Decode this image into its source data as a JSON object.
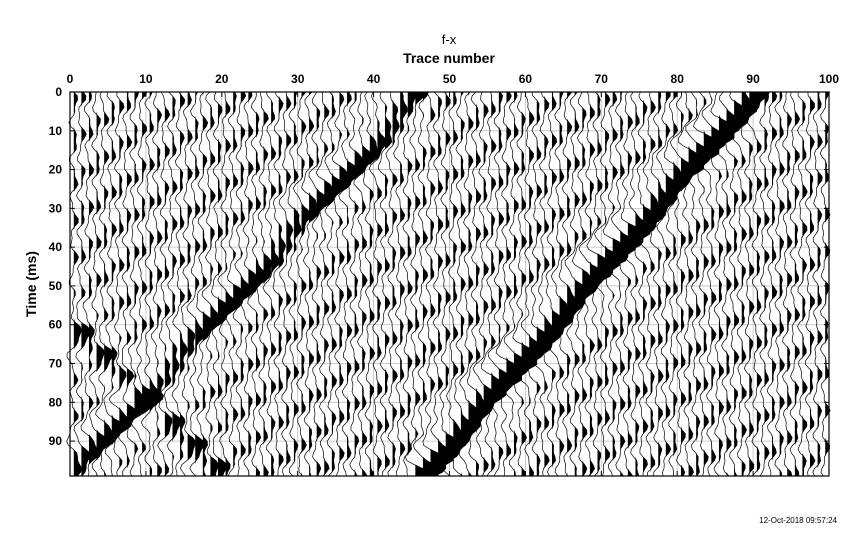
{
  "chart_data": {
    "type": "wiggle",
    "title": "f-x",
    "xlabel": "Trace number",
    "ylabel": "Time (ms)",
    "x_ticks": [
      "0",
      "10",
      "20",
      "30",
      "40",
      "50",
      "60",
      "70",
      "80",
      "90",
      "100"
    ],
    "y_ticks": [
      "0",
      "10",
      "20",
      "30",
      "40",
      "50",
      "60",
      "70",
      "80",
      "90"
    ],
    "xlim": [
      0,
      100
    ],
    "ylim": [
      0,
      99
    ],
    "x_axis_position": "top",
    "y_axis_reversed": true,
    "grid": true,
    "traces": {
      "count": 100,
      "samples_per_trace": 100,
      "fill": "positive lobes filled black",
      "events": [
        {
          "name": "event-1",
          "trace_range": [
            0,
            46
          ],
          "time_range_ms": [
            99,
            0
          ],
          "amplitude": 0.9
        },
        {
          "name": "event-2",
          "trace_range": [
            46,
            90
          ],
          "time_range_ms": [
            99,
            0
          ],
          "amplitude": 1.6
        },
        {
          "name": "event-3",
          "trace_range": [
            0,
            20
          ],
          "time_range_ms": [
            60,
            99
          ],
          "amplitude": 0.6
        }
      ]
    },
    "colors": {
      "trace": "#000000",
      "grid": "#bdbdbd",
      "axis": "#000000"
    }
  },
  "footer": {
    "timestamp": "12-Oct-2018 09:57:24"
  }
}
